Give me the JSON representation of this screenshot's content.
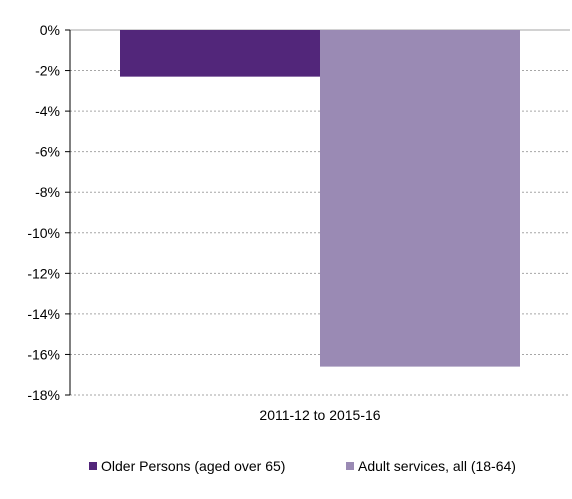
{
  "chart_data": {
    "type": "bar",
    "title": "",
    "xlabel": "",
    "ylabel": "",
    "categories": [
      "2011-12 to 2015-16"
    ],
    "series": [
      {
        "name": "Older Persons (aged over 65)",
        "values": [
          -2.3
        ],
        "color": "#52267a"
      },
      {
        "name": "Adult services, all (18-64)",
        "values": [
          -16.6
        ],
        "color": "#9a8ab4"
      }
    ],
    "ylim": [
      -18,
      0
    ],
    "yticks": [
      0,
      -2,
      -4,
      -6,
      -8,
      -10,
      -12,
      -14,
      -16,
      -18
    ],
    "ytick_labels": [
      "0%",
      "-2%",
      "-4%",
      "-6%",
      "-8%",
      "-10%",
      "-12%",
      "-14%",
      "-16%",
      "-18%"
    ],
    "grid": true,
    "grid_color": "#a6a6a6",
    "legend_position": "bottom"
  }
}
